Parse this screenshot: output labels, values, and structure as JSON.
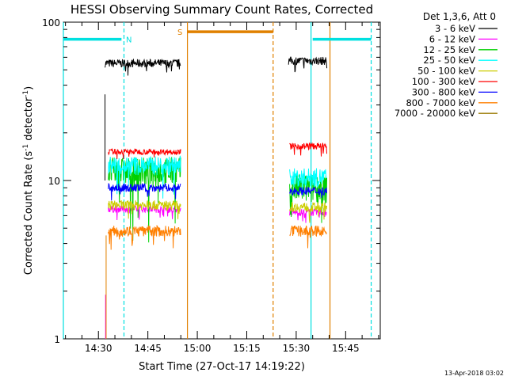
{
  "chart_data": {
    "type": "line",
    "title": "HESSI Observing Summary Count Rates, Corrected",
    "xlabel": "Start Time (27-Oct-17 14:19:22)",
    "ylabel_parts": [
      "Corrected Count Rate (s",
      "-1",
      " detector",
      "-1",
      ")"
    ],
    "yscale": "log",
    "ylim": [
      1,
      100
    ],
    "xlim_minutes": [
      "14:19:22",
      "15:55:30"
    ],
    "y_ticks": [
      {
        "value": 1,
        "label": "1"
      },
      {
        "value": 10,
        "label": "10"
      },
      {
        "value": 100,
        "label": "100"
      }
    ],
    "x_ticks": [
      {
        "time": "14:30",
        "label": "14:30"
      },
      {
        "time": "14:45",
        "label": "14:45"
      },
      {
        "time": "15:00",
        "label": "15:00"
      },
      {
        "time": "15:15",
        "label": "15:15"
      },
      {
        "time": "15:30",
        "label": "15:30"
      },
      {
        "time": "15:45",
        "label": "15:45"
      }
    ],
    "legend_title": "Det 1,3,6, Att 0",
    "legend_position": "right",
    "series": [
      {
        "name": "3 - 6 keV",
        "color": "#000000",
        "segments": [
          {
            "start": "14:32:00",
            "end": "14:55:00",
            "level": 55,
            "spread": 0.06
          },
          {
            "start": "15:27:40",
            "end": "15:39:20",
            "level": 57,
            "spread": 0.06
          }
        ]
      },
      {
        "name": "6 - 12 keV",
        "color": "#ff00ff",
        "segments": [
          {
            "start": "14:33:00",
            "end": "14:55:00",
            "level": 6.6,
            "spread": 0.05
          },
          {
            "start": "15:28:00",
            "end": "15:39:20",
            "level": 6.3,
            "spread": 0.05
          }
        ]
      },
      {
        "name": "12 - 25 keV",
        "color": "#00d000",
        "segments": [
          {
            "start": "14:33:00",
            "end": "14:55:00",
            "level": 11.5,
            "spread": 0.22
          },
          {
            "start": "15:28:00",
            "end": "15:39:20",
            "level": 9.0,
            "spread": 0.22
          }
        ]
      },
      {
        "name": "25 - 50 keV",
        "color": "#00ffff",
        "segments": [
          {
            "start": "14:33:00",
            "end": "14:55:00",
            "level": 12.5,
            "spread": 0.14
          },
          {
            "start": "15:28:00",
            "end": "15:39:20",
            "level": 10.5,
            "spread": 0.14
          }
        ]
      },
      {
        "name": "50 - 100 keV",
        "color": "#cccc00",
        "segments": [
          {
            "start": "14:33:00",
            "end": "14:55:00",
            "level": 7.0,
            "spread": 0.07
          },
          {
            "start": "15:28:00",
            "end": "15:39:20",
            "level": 6.8,
            "spread": 0.07
          }
        ]
      },
      {
        "name": "100 - 300 keV",
        "color": "#ff0000",
        "segments": [
          {
            "start": "14:33:00",
            "end": "14:55:00",
            "level": 15.2,
            "spread": 0.04
          },
          {
            "start": "15:28:00",
            "end": "15:39:20",
            "level": 16.5,
            "spread": 0.05
          }
        ]
      },
      {
        "name": "300 - 800 keV",
        "color": "#0000ff",
        "segments": [
          {
            "start": "14:33:00",
            "end": "14:55:00",
            "level": 9.0,
            "spread": 0.06
          },
          {
            "start": "15:28:00",
            "end": "15:39:20",
            "level": 8.6,
            "spread": 0.06
          }
        ]
      },
      {
        "name": "800 - 7000 keV",
        "color": "#ff7f00",
        "segments": [
          {
            "start": "14:33:00",
            "end": "14:55:00",
            "level": 4.8,
            "spread": 0.08
          },
          {
            "start": "15:28:00",
            "end": "15:39:20",
            "level": 4.8,
            "spread": 0.08
          }
        ]
      },
      {
        "name": "7000 - 20000 keV",
        "color": "#9a7800",
        "segments": []
      }
    ],
    "markers": [
      {
        "kind": "cyan-solid",
        "color": "#00e0e0",
        "time": "14:19:22",
        "style": "solid"
      },
      {
        "kind": "cyan-dashed",
        "color": "#00e0e0",
        "time": "14:37:45",
        "style": "dashed"
      },
      {
        "kind": "orange-solid",
        "color": "#e08000",
        "time": "14:57:00",
        "style": "solid"
      },
      {
        "kind": "orange-dashed",
        "color": "#e08000",
        "time": "15:23:00",
        "style": "dashed"
      },
      {
        "kind": "cyan-solid",
        "color": "#00e0e0",
        "time": "15:34:30",
        "style": "solid"
      },
      {
        "kind": "orange-solid",
        "color": "#e08000",
        "time": "15:40:15",
        "style": "solid"
      },
      {
        "kind": "cyan-dashed",
        "color": "#00e0e0",
        "time": "15:52:45",
        "style": "dashed"
      }
    ],
    "bars": [
      {
        "label": "",
        "color": "#00e0e0",
        "start": "14:19:22",
        "end": "14:37:00",
        "level": 78
      },
      {
        "label": "N",
        "color": "#00e0e0",
        "label_time": "14:39:15",
        "level": 78
      },
      {
        "label": "S",
        "color": "#e08000",
        "label_time": "14:54:45",
        "level": 87
      },
      {
        "label": "",
        "color": "#e08000",
        "start": "14:57:00",
        "end": "15:23:00",
        "level": 87
      },
      {
        "label": "",
        "color": "#00e0e0",
        "start": "15:35:00",
        "end": "15:52:45",
        "level": 78
      }
    ],
    "spikes": [
      {
        "color": "#000000",
        "time": "14:32:00",
        "from": 10,
        "to": 35
      },
      {
        "color": "#ff00ff",
        "time": "14:32:10",
        "from": 1,
        "to": 1.9
      },
      {
        "color": "#e08000",
        "time": "14:32:20",
        "from": 1,
        "to": 4.5
      }
    ]
  },
  "timestamp": "13-Apr-2018 03:02"
}
